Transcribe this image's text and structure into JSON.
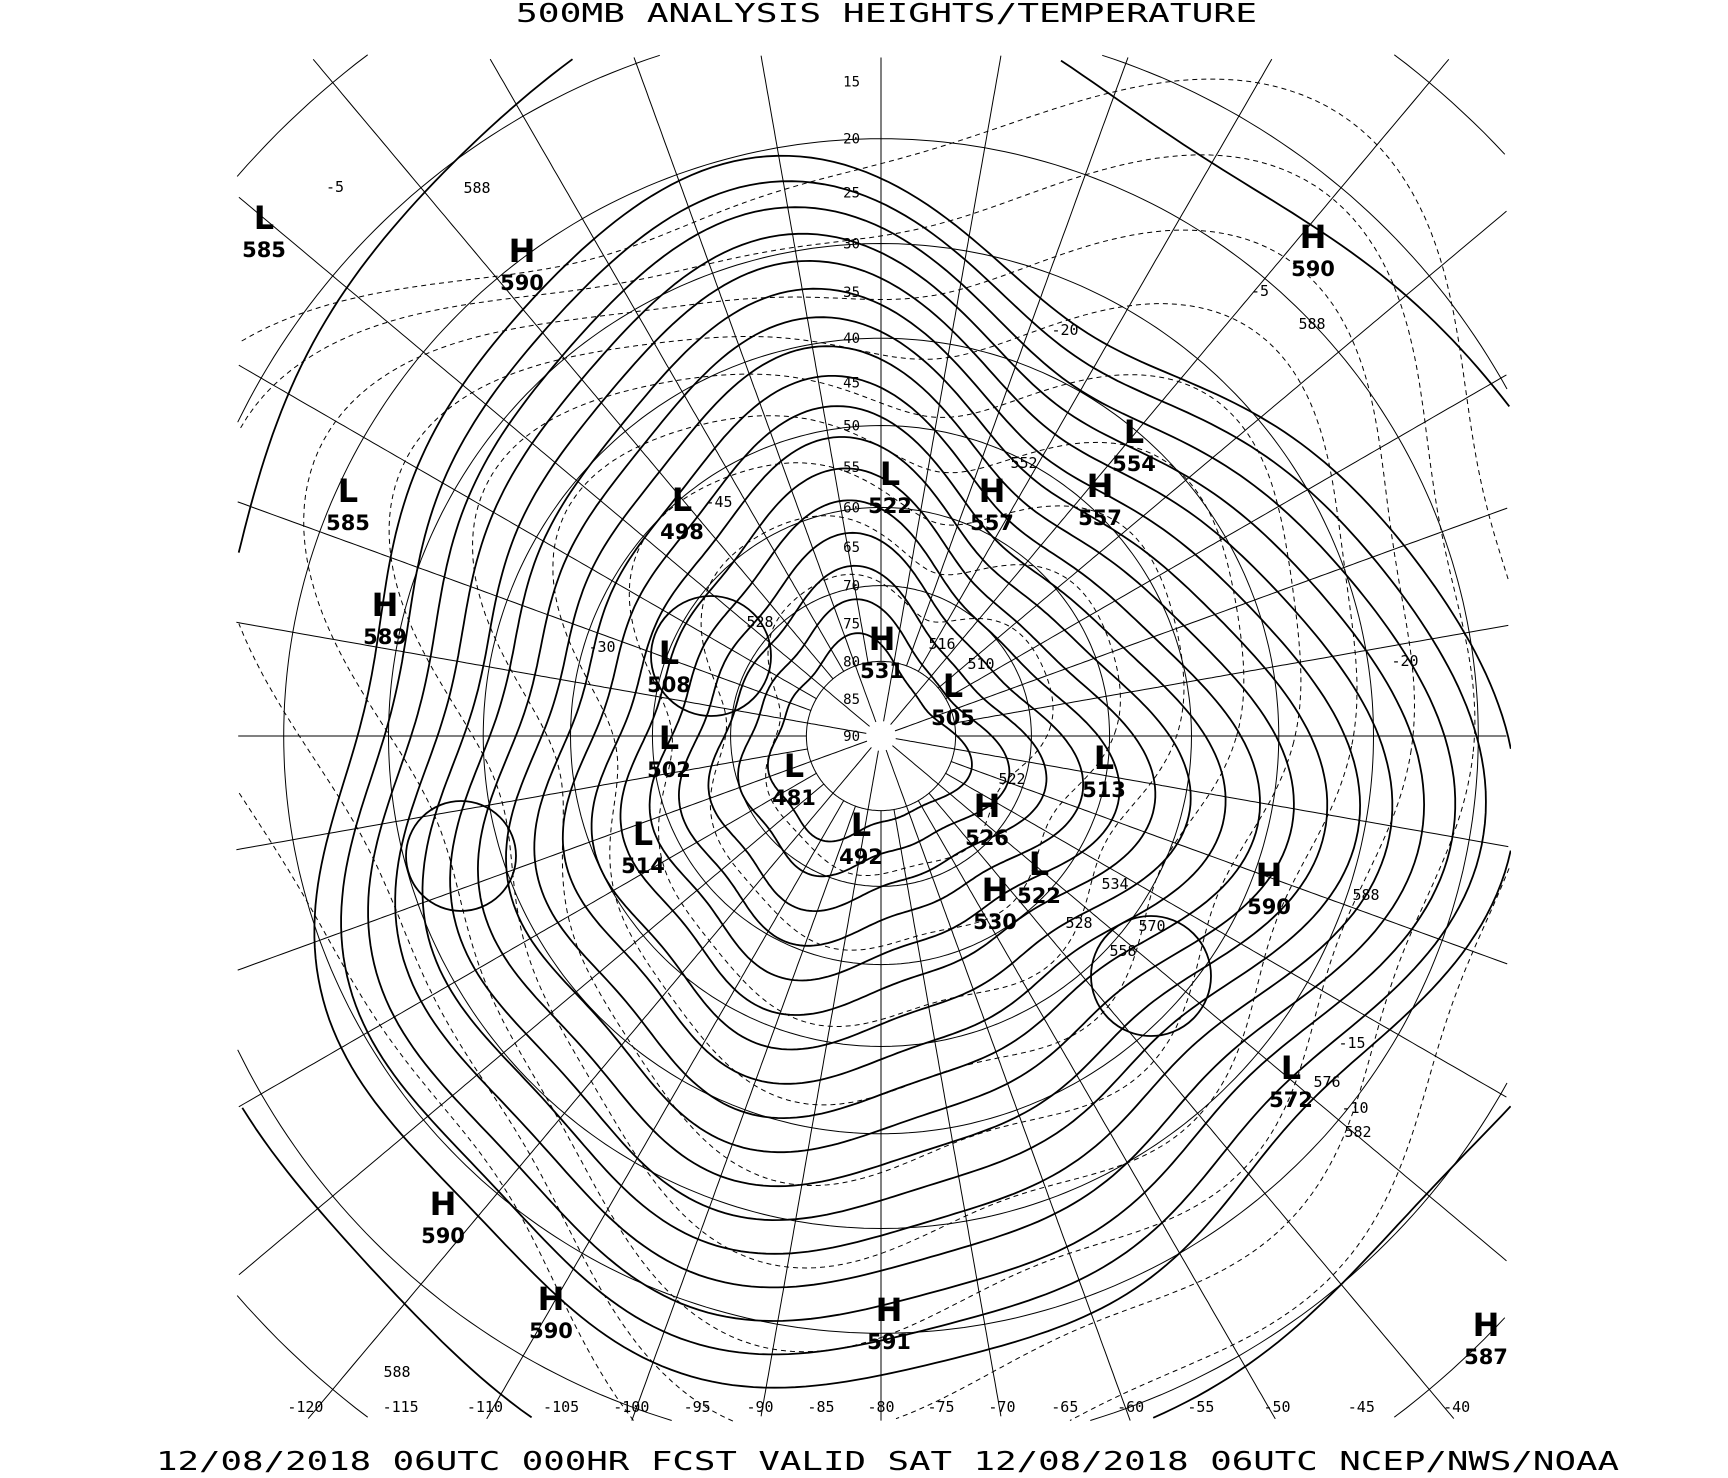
{
  "title": "500MB ANALYSIS  HEIGHTS/TEMPERATURE",
  "footer": "12/08/2018 06UTC 000HR FCST VALID SAT 12/08/2018 06UTC  NCEP/NWS/NOAA",
  "map": {
    "projection": "polar stereographic",
    "line_color": "#000000",
    "background": "#ffffff",
    "latitude_labels": [
      "15",
      "20",
      "25",
      "30",
      "35",
      "40",
      "45",
      "50",
      "55",
      "60",
      "65",
      "70",
      "75",
      "80",
      "85",
      "90"
    ],
    "longitude_labels": [
      "-120",
      "-115",
      "-110",
      "-105",
      "-100",
      "-95",
      "-90",
      "-85",
      "-80",
      "-75",
      "-70",
      "-65",
      "-60",
      "-55",
      "-50",
      "-45",
      "-40"
    ],
    "pressure_centers": [
      {
        "type": "L",
        "value": "585"
      },
      {
        "type": "H",
        "value": "590"
      },
      {
        "type": "L",
        "value": "585"
      },
      {
        "type": "H",
        "value": "589"
      },
      {
        "type": "L",
        "value": "498"
      },
      {
        "type": "L",
        "value": "522"
      },
      {
        "type": "H",
        "value": "557"
      },
      {
        "type": "H",
        "value": "557"
      },
      {
        "type": "L",
        "value": "554"
      },
      {
        "type": "H",
        "value": "590"
      },
      {
        "type": "H",
        "value": "531"
      },
      {
        "type": "L",
        "value": "508"
      },
      {
        "type": "L",
        "value": "505"
      },
      {
        "type": "L",
        "value": "502"
      },
      {
        "type": "L",
        "value": "481"
      },
      {
        "type": "L",
        "value": "513"
      },
      {
        "type": "H",
        "value": "526"
      },
      {
        "type": "L",
        "value": "514"
      },
      {
        "type": "L",
        "value": "492"
      },
      {
        "type": "L",
        "value": "522"
      },
      {
        "type": "H",
        "value": "530"
      },
      {
        "type": "H",
        "value": "590"
      },
      {
        "type": "L",
        "value": "572"
      },
      {
        "type": "H",
        "value": "590"
      },
      {
        "type": "H",
        "value": "590"
      },
      {
        "type": "H",
        "value": "591"
      },
      {
        "type": "H",
        "value": "587"
      }
    ],
    "contour_labels": [
      "588",
      "552",
      "588",
      "588",
      "582",
      "576",
      "528",
      "510",
      "516",
      "522",
      "528",
      "534",
      "558",
      "570",
      "588",
      "-5",
      "-5",
      "-20",
      "-45",
      "-30",
      "-20",
      "-10",
      "-15"
    ]
  }
}
